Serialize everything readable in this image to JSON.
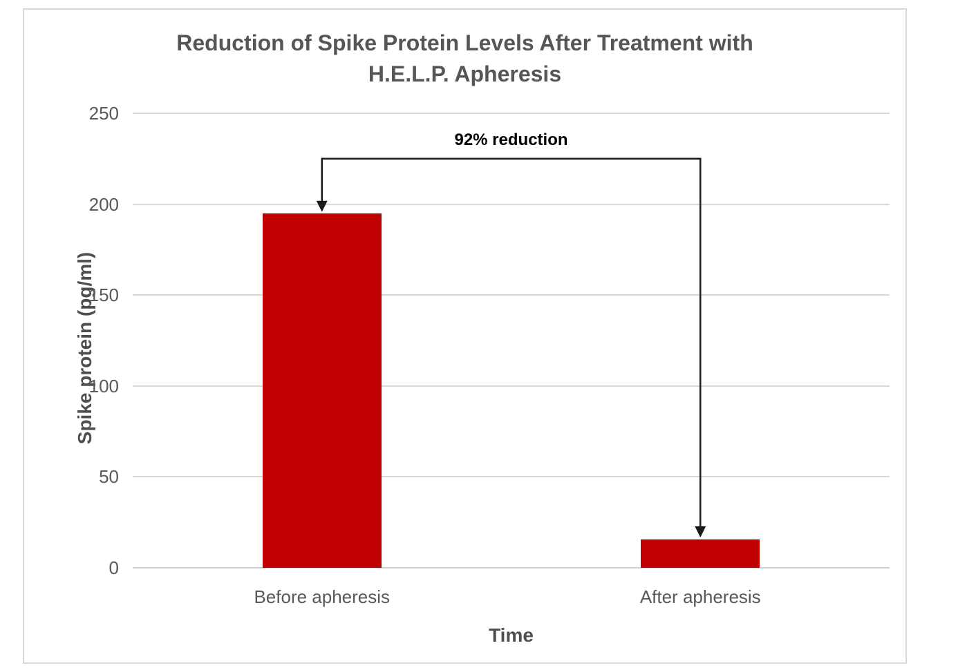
{
  "chart_data": {
    "type": "bar",
    "title": "Reduction of Spike Protein Levels After Treatment with H.E.L.P. Apheresis",
    "title_lines": [
      "Reduction of Spike Protein Levels After Treatment with",
      "H.E.L.P. Apheresis"
    ],
    "xlabel": "Time",
    "ylabel": "Spike protein (pg/ml)",
    "categories": [
      "Before apheresis",
      "After apheresis"
    ],
    "values": [
      195,
      15.6
    ],
    "yticks": [
      0,
      50,
      100,
      150,
      200,
      250
    ],
    "ylim": [
      0,
      250
    ],
    "grid": true,
    "legend": false,
    "bar_color": "#c00000",
    "annotation": {
      "text": "92% reduction",
      "from_category": "Before apheresis",
      "to_category": "After apheresis"
    }
  },
  "colors": {
    "bar": "#c00000",
    "gridline": "#d9d9d9",
    "frame_border": "#d9d9d9",
    "tick_text": "#595959",
    "title_text": "#565656",
    "axis_title_text": "#4f4f4f",
    "annotation_text": "#000000",
    "arrow": "#1a1a1a",
    "background": "#ffffff"
  }
}
